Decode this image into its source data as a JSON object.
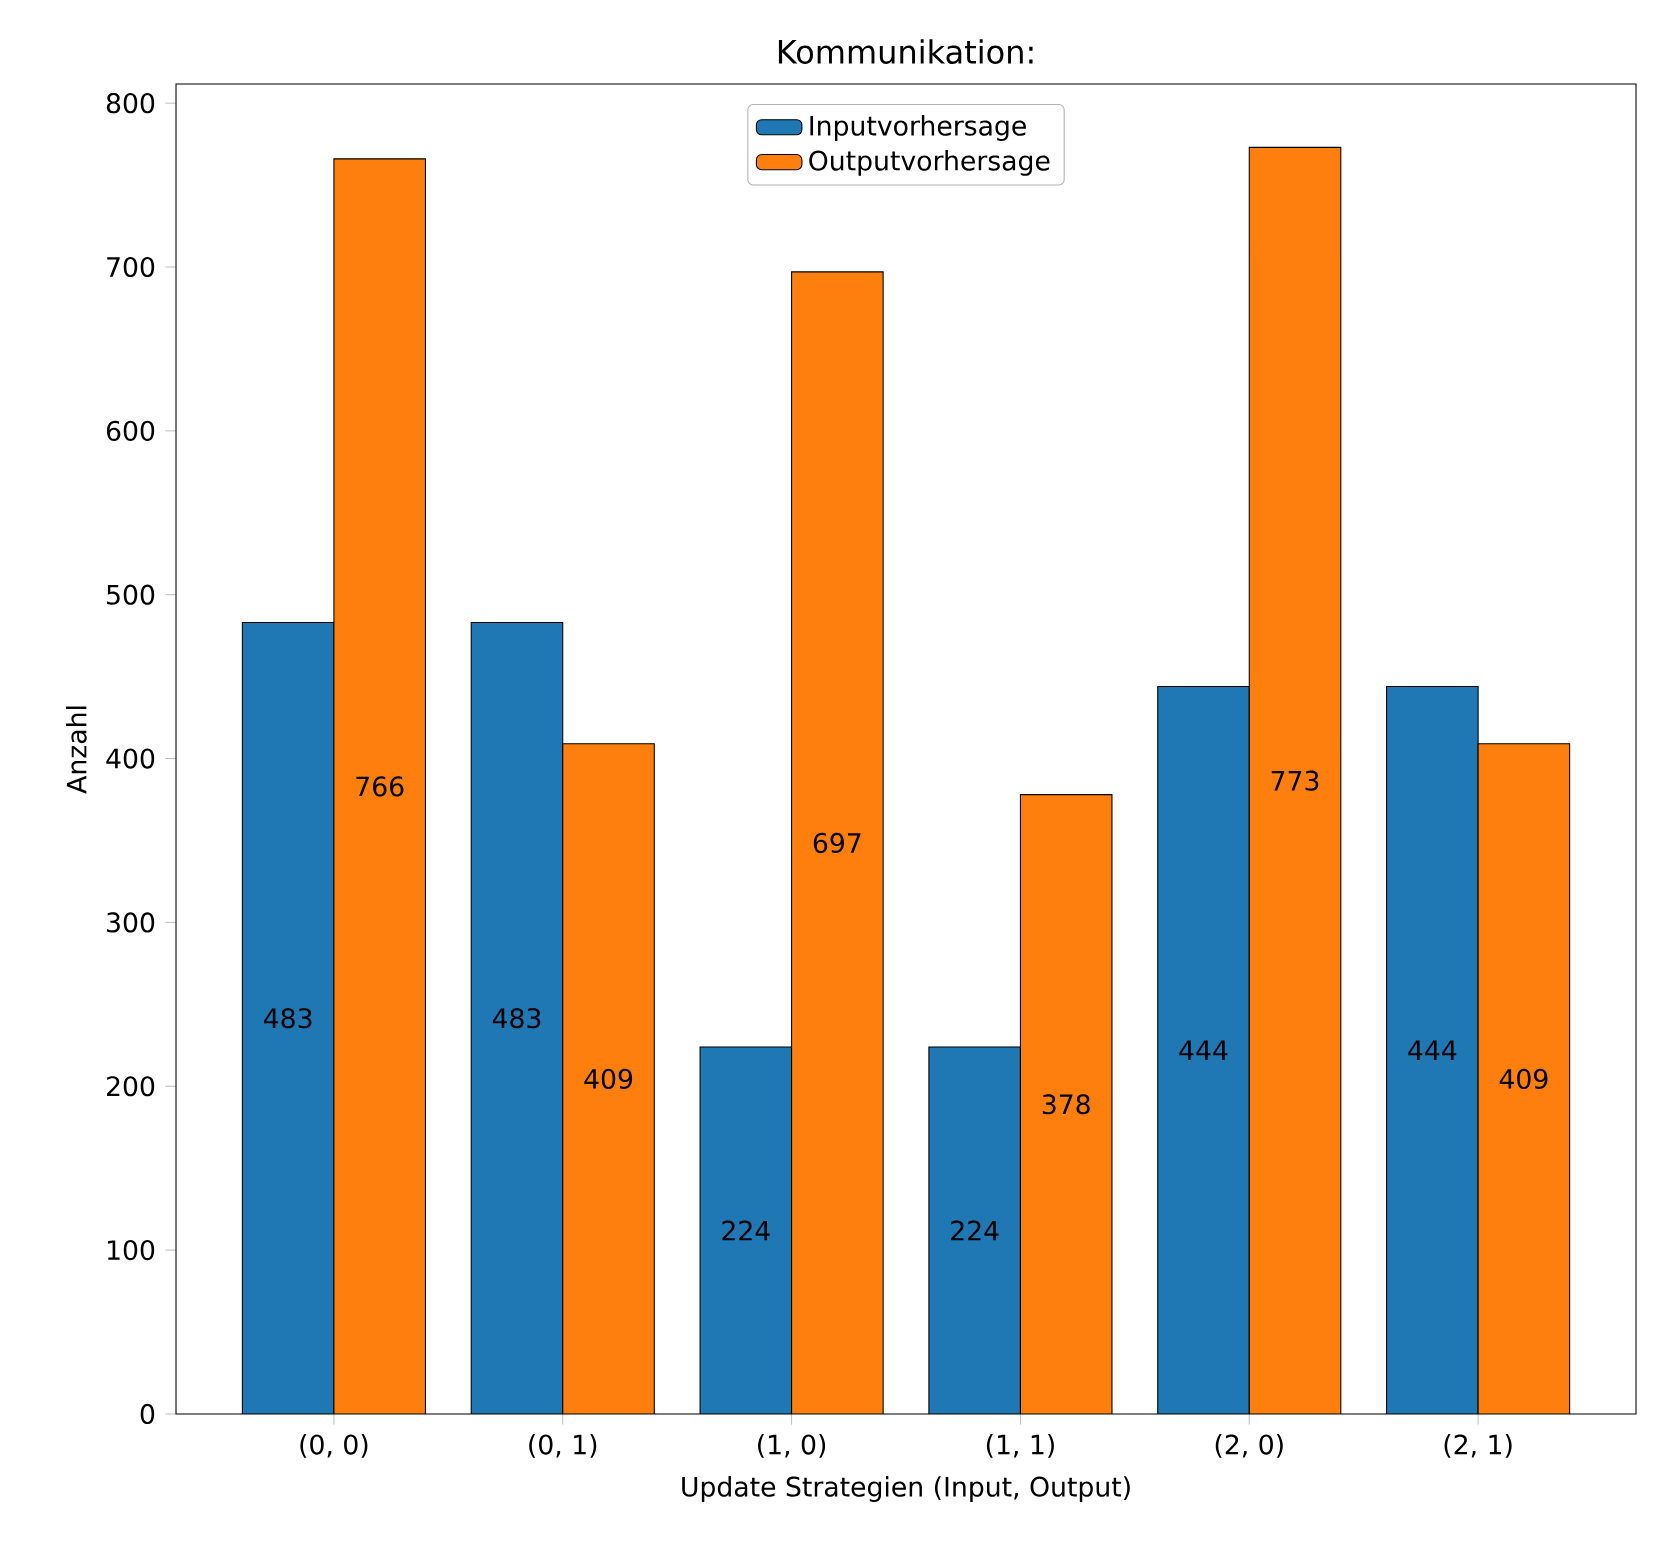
{
  "chart_data": {
    "type": "bar",
    "title": "Kommunikation:",
    "xlabel": "Update Strategien (Input, Output)",
    "ylabel": "Anzahl",
    "categories": [
      "(0, 0)",
      "(0, 1)",
      "(1, 0)",
      "(1, 1)",
      "(2, 0)",
      "(2, 1)"
    ],
    "series": [
      {
        "name": "Inputvorhersage",
        "color": "#1f77b4",
        "values": [
          483,
          483,
          224,
          224,
          444,
          444
        ]
      },
      {
        "name": "Outputvorhersage",
        "color": "#ff7f0e",
        "values": [
          766,
          409,
          697,
          378,
          773,
          409
        ]
      }
    ],
    "ylim": [
      0,
      811.7
    ],
    "yticks": [
      0,
      100,
      200,
      300,
      400,
      500,
      600,
      700,
      800
    ],
    "legend": "top",
    "data_labels": true
  }
}
